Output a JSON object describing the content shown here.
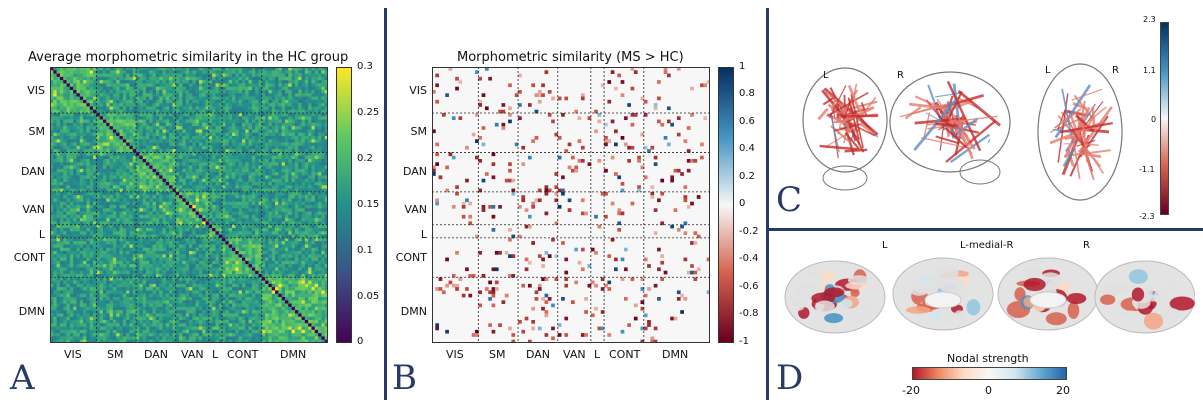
{
  "panel_a": {
    "letter": "A",
    "title": "Average morphometric similarity in the HC group",
    "row_labels": [
      "VIS",
      "SM",
      "DAN",
      "VAN",
      "L",
      "CONT",
      "DMN"
    ],
    "col_labels": [
      "VIS",
      "SM",
      "DAN",
      "VAN",
      "L",
      "CONT",
      "DMN"
    ],
    "colorbar_ticks": [
      "0.3",
      "0.25",
      "0.2",
      "0.15",
      "0.1",
      "0.05",
      "0"
    ],
    "colormap": [
      "#440154",
      "#3b528b",
      "#21918c",
      "#5ec962",
      "#fde725"
    ]
  },
  "panel_b": {
    "letter": "B",
    "title": "Morphometric similarity (MS > HC)",
    "row_labels": [
      "VIS",
      "SM",
      "DAN",
      "VAN",
      "L",
      "CONT",
      "DMN"
    ],
    "col_labels": [
      "VIS",
      "SM",
      "DAN",
      "VAN",
      "L",
      "CONT",
      "DMN"
    ],
    "colorbar_ticks": [
      "1",
      "0.8",
      "0.6",
      "0.4",
      "0.2",
      "0",
      "-0.2",
      "-0.4",
      "-0.6",
      "-0.8",
      "-1"
    ],
    "colormap": [
      "#67001f",
      "#d6604d",
      "#f7f7f7",
      "#4393c3",
      "#053061"
    ]
  },
  "panel_c": {
    "letter": "C",
    "left_label": "L",
    "right_label": "R",
    "left_label_2": "L",
    "right_label_2": "R",
    "colorbar_ticks": [
      "2.3",
      "1.1",
      "0",
      "-1.1",
      "-2.3"
    ]
  },
  "panel_d": {
    "letter": "D",
    "label_left": "L",
    "label_center": "L-medial-R",
    "label_right": "R",
    "colorbar_title": "Nodal strength",
    "colorbar_ticks": [
      "-20",
      "0",
      "20"
    ]
  },
  "networks": [
    {
      "name": "VIS",
      "size": 14
    },
    {
      "name": "SM",
      "size": 12
    },
    {
      "name": "DAN",
      "size": 12
    },
    {
      "name": "VAN",
      "size": 10
    },
    {
      "name": "L",
      "size": 4
    },
    {
      "name": "CONT",
      "size": 12
    },
    {
      "name": "DMN",
      "size": 20
    }
  ]
}
